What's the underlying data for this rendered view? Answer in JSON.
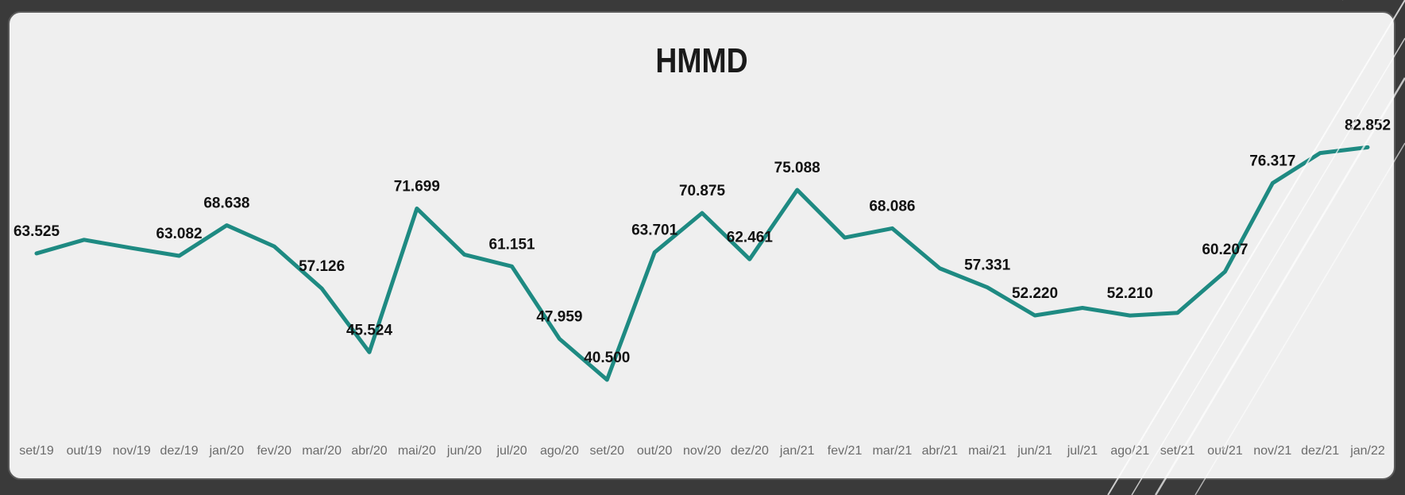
{
  "chart_data": {
    "type": "line",
    "title": "HMMD",
    "x": [
      "set/19",
      "out/19",
      "nov/19",
      "dez/19",
      "jan/20",
      "fev/20",
      "mar/20",
      "abr/20",
      "mai/20",
      "jun/20",
      "jul/20",
      "ago/20",
      "set/20",
      "out/20",
      "nov/20",
      "dez/20",
      "jan/21",
      "fev/21",
      "mar/21",
      "abr/21",
      "mai/21",
      "jun/21",
      "jul/21",
      "ago/21",
      "set/21",
      "out/21",
      "nov/21",
      "dez/21",
      "jan/22"
    ],
    "series": [
      {
        "values": [
          63525,
          66000,
          64500,
          63082,
          68638,
          64800,
          57126,
          45524,
          71699,
          63300,
          61151,
          47959,
          40500,
          63701,
          70875,
          62461,
          75088,
          66400,
          68086,
          60800,
          57331,
          52220,
          53600,
          52210,
          52700,
          60207,
          76317,
          81800,
          82852
        ]
      }
    ],
    "labels": [
      {
        "index": 0,
        "text": "63.525"
      },
      {
        "index": 3,
        "text": "63.082"
      },
      {
        "index": 4,
        "text": "68.638"
      },
      {
        "index": 6,
        "text": "57.126"
      },
      {
        "index": 7,
        "text": "45.524"
      },
      {
        "index": 8,
        "text": "71.699"
      },
      {
        "index": 10,
        "text": "61.151"
      },
      {
        "index": 11,
        "text": "47.959"
      },
      {
        "index": 12,
        "text": "40.500"
      },
      {
        "index": 13,
        "text": "63.701"
      },
      {
        "index": 14,
        "text": "70.875"
      },
      {
        "index": 15,
        "text": "62.461"
      },
      {
        "index": 16,
        "text": "75.088"
      },
      {
        "index": 18,
        "text": "68.086"
      },
      {
        "index": 20,
        "text": "57.331"
      },
      {
        "index": 21,
        "text": "52.220"
      },
      {
        "index": 23,
        "text": "52.210"
      },
      {
        "index": 25,
        "text": "60.207"
      },
      {
        "index": 26,
        "text": "76.317"
      },
      {
        "index": 28,
        "text": "82.852"
      }
    ],
    "ylim": [
      35000,
      90000
    ],
    "grid": false,
    "legend": "none",
    "line_color": "#1e8a82",
    "background_color": "#efefef"
  }
}
